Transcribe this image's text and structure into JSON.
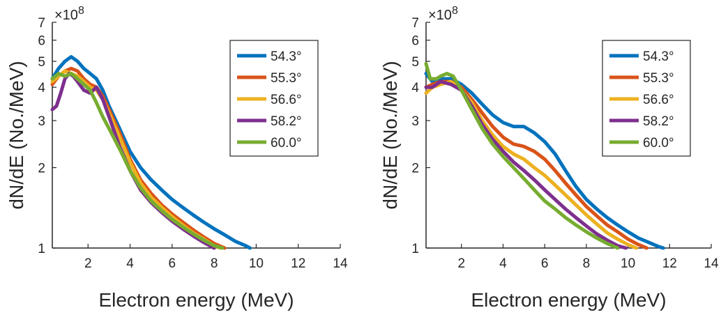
{
  "colors": {
    "series": [
      "#0072BD",
      "#D95319",
      "#EDB120",
      "#7E2F8E",
      "#77AC30"
    ],
    "axis": "#262626"
  },
  "chart_data": [
    {
      "type": "line",
      "xlabel": "Electron energy (MeV)",
      "ylabel": "dN/dE (No./MeV)",
      "yscale": "log",
      "y_multiplier_label": "×10",
      "y_multiplier_exp": "8",
      "xlim": [
        0.3,
        14
      ],
      "ylim": [
        1,
        7
      ],
      "xticks": [
        "2",
        "4",
        "6",
        "8",
        "10",
        "12",
        "14"
      ],
      "yticks": [
        "1",
        "2",
        "3",
        "4",
        "5",
        "6",
        "7"
      ],
      "legend_position": "top-right",
      "grid": false,
      "series": [
        {
          "name": "54.3°",
          "x": [
            0.3,
            0.6,
            0.9,
            1.2,
            1.5,
            1.8,
            2.1,
            2.4,
            2.7,
            3.0,
            3.5,
            4.0,
            4.5,
            5.0,
            5.5,
            6.0,
            6.5,
            7.0,
            7.5,
            8.0,
            8.5,
            9.0,
            9.5,
            9.7
          ],
          "y": [
            4.3,
            4.7,
            5.0,
            5.2,
            5.0,
            4.7,
            4.5,
            4.3,
            3.9,
            3.4,
            2.8,
            2.3,
            2.0,
            1.8,
            1.65,
            1.52,
            1.42,
            1.33,
            1.25,
            1.18,
            1.12,
            1.06,
            1.02,
            1.0
          ]
        },
        {
          "name": "55.3°",
          "x": [
            0.3,
            0.6,
            0.9,
            1.2,
            1.5,
            1.8,
            2.1,
            2.4,
            2.7,
            3.0,
            3.5,
            4.0,
            4.5,
            5.0,
            5.5,
            6.0,
            6.5,
            7.0,
            7.5,
            8.0,
            8.5
          ],
          "y": [
            4.1,
            4.4,
            4.6,
            4.7,
            4.6,
            4.3,
            4.1,
            4.0,
            3.7,
            3.3,
            2.7,
            2.15,
            1.8,
            1.6,
            1.45,
            1.34,
            1.25,
            1.17,
            1.1,
            1.04,
            1.0
          ]
        },
        {
          "name": "56.6°",
          "x": [
            0.3,
            0.6,
            0.9,
            1.2,
            1.5,
            1.8,
            2.1,
            2.4,
            2.7,
            3.0,
            3.5,
            4.0,
            4.5,
            5.0,
            5.5,
            6.0,
            6.5,
            7.0,
            7.5,
            8.0,
            8.3
          ],
          "y": [
            4.2,
            4.4,
            4.6,
            4.5,
            4.4,
            4.2,
            4.0,
            3.9,
            3.6,
            3.2,
            2.6,
            2.1,
            1.75,
            1.55,
            1.42,
            1.31,
            1.22,
            1.14,
            1.08,
            1.02,
            1.0
          ]
        },
        {
          "name": "58.2°",
          "x": [
            0.3,
            0.5,
            0.7,
            0.9,
            1.1,
            1.3,
            1.5,
            1.8,
            2.1,
            2.4,
            2.7,
            3.0,
            3.5,
            4.0,
            4.5,
            5.0,
            5.5,
            6.0,
            6.5,
            7.0,
            7.5,
            8.0
          ],
          "y": [
            3.3,
            3.4,
            3.8,
            4.3,
            4.5,
            4.4,
            4.2,
            3.9,
            3.8,
            4.0,
            3.6,
            3.1,
            2.4,
            1.95,
            1.65,
            1.48,
            1.36,
            1.26,
            1.18,
            1.11,
            1.05,
            1.0
          ]
        },
        {
          "name": "60.0°",
          "x": [
            0.3,
            0.6,
            0.9,
            1.2,
            1.5,
            1.8,
            2.1,
            2.4,
            2.7,
            3.0,
            3.5,
            4.0,
            4.5,
            5.0,
            5.5,
            6.0,
            6.5,
            7.0,
            7.5,
            8.0,
            8.4
          ],
          "y": [
            4.3,
            4.5,
            4.4,
            4.5,
            4.3,
            4.1,
            3.9,
            3.5,
            3.1,
            2.8,
            2.35,
            1.95,
            1.68,
            1.5,
            1.38,
            1.28,
            1.2,
            1.13,
            1.07,
            1.02,
            1.0
          ]
        }
      ]
    },
    {
      "type": "line",
      "xlabel": "Electron energy (MeV)",
      "ylabel": "dN/dE (No./MeV)",
      "yscale": "log",
      "y_multiplier_label": "×10",
      "y_multiplier_exp": "8",
      "xlim": [
        0.3,
        14
      ],
      "ylim": [
        1,
        7
      ],
      "xticks": [
        "2",
        "4",
        "6",
        "8",
        "10",
        "12",
        "14"
      ],
      "yticks": [
        "1",
        "2",
        "3",
        "4",
        "5",
        "6",
        "7"
      ],
      "legend_position": "top-right",
      "grid": false,
      "series": [
        {
          "name": "54.3°",
          "x": [
            0.3,
            0.6,
            1.0,
            1.5,
            2.0,
            2.5,
            3.0,
            3.5,
            4.0,
            4.5,
            5.0,
            5.5,
            6.0,
            6.5,
            7.0,
            7.5,
            8.0,
            8.5,
            9.0,
            9.5,
            10.0,
            10.5,
            11.0,
            11.5,
            11.7
          ],
          "y": [
            4.5,
            4.2,
            4.3,
            4.3,
            4.1,
            3.8,
            3.45,
            3.15,
            2.95,
            2.85,
            2.85,
            2.7,
            2.5,
            2.25,
            1.95,
            1.7,
            1.52,
            1.4,
            1.3,
            1.22,
            1.15,
            1.09,
            1.05,
            1.01,
            1.0
          ]
        },
        {
          "name": "55.3°",
          "x": [
            0.3,
            0.6,
            1.0,
            1.5,
            2.0,
            2.5,
            3.0,
            3.5,
            4.0,
            4.5,
            5.0,
            5.5,
            6.0,
            6.5,
            7.0,
            7.5,
            8.0,
            8.5,
            9.0,
            9.5,
            10.0,
            10.5,
            10.9
          ],
          "y": [
            4.0,
            4.1,
            4.2,
            4.2,
            4.0,
            3.6,
            3.2,
            2.85,
            2.6,
            2.45,
            2.4,
            2.3,
            2.15,
            1.95,
            1.75,
            1.58,
            1.43,
            1.32,
            1.22,
            1.15,
            1.08,
            1.03,
            1.0
          ]
        },
        {
          "name": "56.6°",
          "x": [
            0.3,
            0.6,
            1.0,
            1.5,
            2.0,
            2.5,
            3.0,
            3.5,
            4.0,
            4.5,
            5.0,
            5.5,
            6.0,
            6.5,
            7.0,
            7.5,
            8.0,
            8.5,
            9.0,
            9.5,
            10.0,
            10.4
          ],
          "y": [
            3.8,
            4.0,
            4.1,
            4.2,
            3.9,
            3.5,
            3.0,
            2.65,
            2.4,
            2.25,
            2.15,
            2.0,
            1.87,
            1.72,
            1.58,
            1.45,
            1.33,
            1.23,
            1.14,
            1.08,
            1.03,
            1.0
          ]
        },
        {
          "name": "58.2°",
          "x": [
            0.3,
            0.6,
            1.0,
            1.5,
            2.0,
            2.5,
            3.0,
            3.5,
            4.0,
            4.5,
            5.0,
            5.5,
            6.0,
            6.5,
            7.0,
            7.5,
            8.0,
            8.5,
            9.0,
            9.5,
            9.9
          ],
          "y": [
            4.0,
            4.0,
            4.2,
            4.1,
            3.9,
            3.4,
            2.9,
            2.55,
            2.3,
            2.1,
            1.95,
            1.8,
            1.65,
            1.52,
            1.4,
            1.3,
            1.21,
            1.13,
            1.07,
            1.02,
            1.0
          ]
        },
        {
          "name": "60.0°",
          "x": [
            0.3,
            0.5,
            0.8,
            1.0,
            1.3,
            1.6,
            2.0,
            2.5,
            3.0,
            3.5,
            4.0,
            4.5,
            5.0,
            5.5,
            6.0,
            6.5,
            7.0,
            7.5,
            8.0,
            8.5,
            9.0,
            9.5
          ],
          "y": [
            4.9,
            4.3,
            4.3,
            4.4,
            4.5,
            4.4,
            3.9,
            3.3,
            2.8,
            2.45,
            2.2,
            2.0,
            1.82,
            1.65,
            1.5,
            1.4,
            1.3,
            1.22,
            1.15,
            1.09,
            1.04,
            1.0
          ]
        }
      ]
    }
  ]
}
